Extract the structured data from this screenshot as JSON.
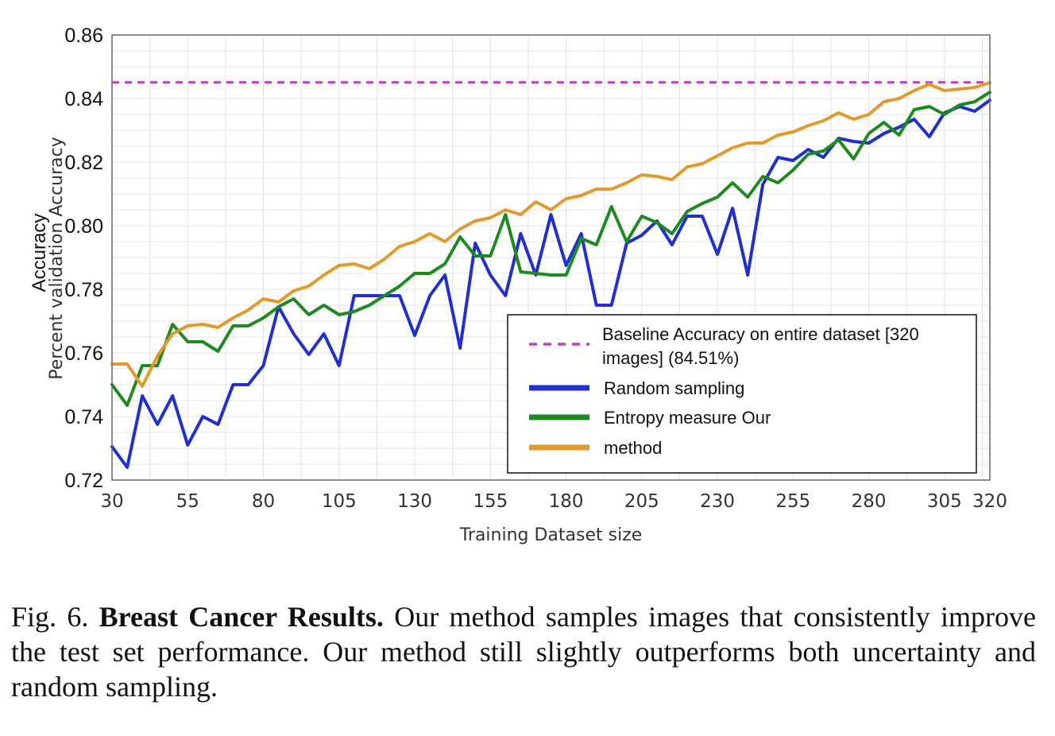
{
  "chart_data": {
    "type": "line",
    "xlabel": "Training Dataset size",
    "ylabel": "Percent validation Accuracy",
    "ylabel_overlay": "Accuracy",
    "x_ticks": [
      30,
      55,
      80,
      105,
      130,
      155,
      180,
      205,
      230,
      255,
      280,
      305,
      320
    ],
    "y_ticks": [
      "0.72",
      "0.74",
      "0.76",
      "0.78",
      "0.80",
      "0.82",
      "0.84",
      "0.86"
    ],
    "xlim": [
      30,
      320
    ],
    "ylim": [
      0.72,
      0.86
    ],
    "grid": true,
    "legend_position": "lower-right",
    "baseline": {
      "name": "Baseline Accuracy on entire dataset [320 images] (84.51%)",
      "name_lines": [
        "Baseline Accuracy on entire dataset [320",
        "images] (84.51%)"
      ],
      "value": 0.8451,
      "color": "#c040c0",
      "style": "dashed"
    },
    "series": [
      {
        "name": "Random sampling",
        "color": "#1f2fd0",
        "x": [
          30,
          35,
          40,
          45,
          50,
          55,
          60,
          65,
          70,
          75,
          80,
          85,
          90,
          95,
          100,
          105,
          110,
          115,
          120,
          125,
          130,
          135,
          140,
          145,
          150,
          155,
          160,
          165,
          170,
          175,
          180,
          185,
          190,
          195,
          200,
          205,
          210,
          215,
          220,
          225,
          230,
          235,
          240,
          245,
          250,
          255,
          260,
          265,
          270,
          275,
          280,
          285,
          290,
          295,
          300,
          305,
          310,
          315,
          320
        ],
        "y": [
          0.7305,
          0.724,
          0.7465,
          0.7375,
          0.7465,
          0.731,
          0.74,
          0.7375,
          0.75,
          0.75,
          0.756,
          0.7745,
          0.766,
          0.7595,
          0.766,
          0.756,
          0.778,
          0.778,
          0.778,
          0.778,
          0.7655,
          0.778,
          0.7845,
          0.7615,
          0.7945,
          0.7845,
          0.778,
          0.7975,
          0.7845,
          0.8035,
          0.7875,
          0.7975,
          0.775,
          0.775,
          0.7945,
          0.797,
          0.8015,
          0.794,
          0.803,
          0.803,
          0.791,
          0.8055,
          0.7845,
          0.813,
          0.8215,
          0.8205,
          0.824,
          0.8215,
          0.8275,
          0.8265,
          0.826,
          0.829,
          0.831,
          0.8335,
          0.828,
          0.8355,
          0.8375,
          0.836,
          0.8395
        ]
      },
      {
        "name": "Entropy measure Our",
        "color": "#1f8a1f",
        "x": [
          30,
          35,
          40,
          45,
          50,
          55,
          60,
          65,
          70,
          75,
          80,
          85,
          90,
          95,
          100,
          105,
          110,
          115,
          120,
          125,
          130,
          135,
          140,
          145,
          150,
          155,
          160,
          165,
          170,
          175,
          180,
          185,
          190,
          195,
          200,
          205,
          210,
          215,
          220,
          225,
          230,
          235,
          240,
          245,
          250,
          255,
          260,
          265,
          270,
          275,
          280,
          285,
          290,
          295,
          300,
          305,
          310,
          315,
          320
        ],
        "y": [
          0.75,
          0.7435,
          0.756,
          0.756,
          0.769,
          0.7635,
          0.7635,
          0.7605,
          0.7685,
          0.7685,
          0.771,
          0.7745,
          0.777,
          0.772,
          0.775,
          0.772,
          0.773,
          0.775,
          0.778,
          0.781,
          0.785,
          0.785,
          0.788,
          0.7965,
          0.7905,
          0.7905,
          0.8035,
          0.7855,
          0.785,
          0.7845,
          0.7845,
          0.796,
          0.794,
          0.806,
          0.795,
          0.803,
          0.801,
          0.7975,
          0.8045,
          0.807,
          0.809,
          0.8135,
          0.809,
          0.8155,
          0.8135,
          0.8175,
          0.8225,
          0.8235,
          0.827,
          0.821,
          0.829,
          0.8325,
          0.8285,
          0.8365,
          0.8375,
          0.835,
          0.838,
          0.839,
          0.842
        ]
      },
      {
        "name": "method",
        "color": "#e39a2c",
        "x": [
          30,
          35,
          40,
          45,
          50,
          55,
          60,
          65,
          70,
          75,
          80,
          85,
          90,
          95,
          100,
          105,
          110,
          115,
          120,
          125,
          130,
          135,
          140,
          145,
          150,
          155,
          160,
          165,
          170,
          175,
          180,
          185,
          190,
          195,
          200,
          205,
          210,
          215,
          220,
          225,
          230,
          235,
          240,
          245,
          250,
          255,
          260,
          265,
          270,
          275,
          280,
          285,
          290,
          295,
          300,
          305,
          310,
          315,
          320
        ],
        "y": [
          0.7565,
          0.7565,
          0.7495,
          0.759,
          0.766,
          0.7685,
          0.769,
          0.768,
          0.771,
          0.7735,
          0.777,
          0.776,
          0.7795,
          0.781,
          0.7845,
          0.7875,
          0.788,
          0.7865,
          0.7895,
          0.7935,
          0.795,
          0.7975,
          0.795,
          0.799,
          0.8015,
          0.8025,
          0.805,
          0.8035,
          0.8075,
          0.805,
          0.8085,
          0.8095,
          0.8115,
          0.8115,
          0.8135,
          0.816,
          0.8155,
          0.8145,
          0.8185,
          0.8195,
          0.822,
          0.8245,
          0.826,
          0.826,
          0.8285,
          0.8295,
          0.8315,
          0.833,
          0.8355,
          0.8335,
          0.835,
          0.839,
          0.84,
          0.8425,
          0.8445,
          0.8425,
          0.843,
          0.8435,
          0.845
        ]
      }
    ]
  },
  "caption": {
    "prefix": "Fig. 6. ",
    "bold": "Breast Cancer Results.",
    "rest": " Our method samples images that consistently improve the test set performance. Our method still slightly outperforms both uncertainty and random sampling."
  }
}
